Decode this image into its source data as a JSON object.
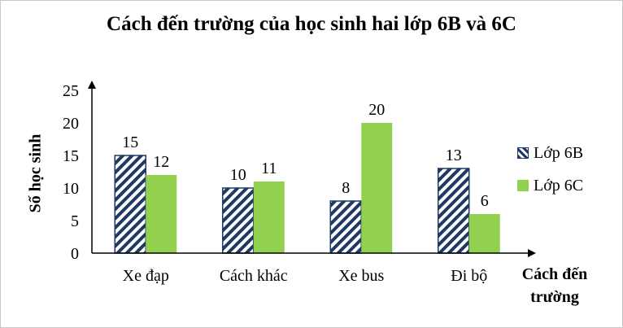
{
  "chart_data": {
    "type": "bar",
    "title": "Cách đến trường của học sinh hai lớp 6B và 6C",
    "xlabel": "Cách đến trường",
    "ylabel": "Số học sinh",
    "categories": [
      "Xe đạp",
      "Cách khác",
      "Xe bus",
      "Đi bộ"
    ],
    "series": [
      {
        "name": "Lớp 6B",
        "values": [
          15,
          10,
          8,
          13
        ],
        "color": "#1f3864",
        "pattern": "diagonal-stripes"
      },
      {
        "name": "Lớp 6C",
        "values": [
          12,
          11,
          20,
          6
        ],
        "color": "#92d050"
      }
    ],
    "ylim": [
      0,
      25
    ],
    "yticks": [
      0,
      5,
      10,
      15,
      20,
      25
    ],
    "grid": false,
    "legend": "right",
    "data_labels": true
  }
}
